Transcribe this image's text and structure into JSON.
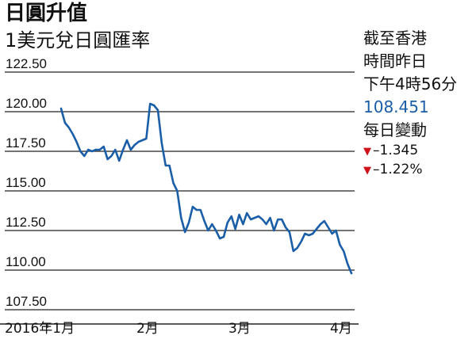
{
  "header": {
    "title": "日圓升值",
    "subtitle": "1美元兌日圓匯率"
  },
  "info": {
    "line1": "截至香港",
    "line2": "時間昨日",
    "line3": "下午4時56分",
    "price": "108.451",
    "change_label": "每日變動",
    "change_abs": "–1.345",
    "change_pct": "–1.22%",
    "down_icon": "down-triangle-icon",
    "price_color": "#1b5ea8",
    "down_color": "#d0121b"
  },
  "chart_data": {
    "type": "line",
    "title": "1美元兌日圓匯率",
    "xlabel": "",
    "ylabel": "",
    "ylim": [
      107.5,
      122.5
    ],
    "yticks": [
      "122.50",
      "120.00",
      "117.50",
      "115.00",
      "112.50",
      "110.00",
      "107.50"
    ],
    "xticks": [
      "2016年1月",
      "2月",
      "3月",
      "4月"
    ],
    "grid": "horizontal",
    "line_color": "#1b5ea8",
    "series": [
      {
        "values": [
          120.2,
          119.3,
          119.0,
          118.6,
          118.1,
          117.5,
          117.2,
          117.6,
          117.5,
          117.6,
          117.6,
          117.8,
          117.0,
          117.2,
          117.6,
          116.9,
          117.6,
          118.2,
          117.6,
          117.9,
          118.1,
          118.2,
          118.3,
          120.5,
          120.4,
          120.1,
          118.0,
          116.6,
          116.6,
          115.5,
          115.0,
          113.3,
          112.4,
          113.0,
          114.0,
          113.8,
          113.8,
          113.1,
          112.5,
          112.9,
          112.5,
          112.0,
          112.1,
          113.0,
          113.4,
          112.6,
          113.5,
          112.9,
          113.6,
          113.2,
          113.3,
          113.4,
          113.2,
          112.9,
          113.3,
          112.5,
          113.2,
          113.2,
          112.7,
          112.4,
          111.2,
          111.4,
          111.8,
          112.3,
          112.2,
          112.3,
          112.6,
          112.9,
          113.1,
          112.7,
          112.3,
          112.5,
          111.6,
          111.2,
          110.4,
          109.8
        ]
      }
    ]
  }
}
